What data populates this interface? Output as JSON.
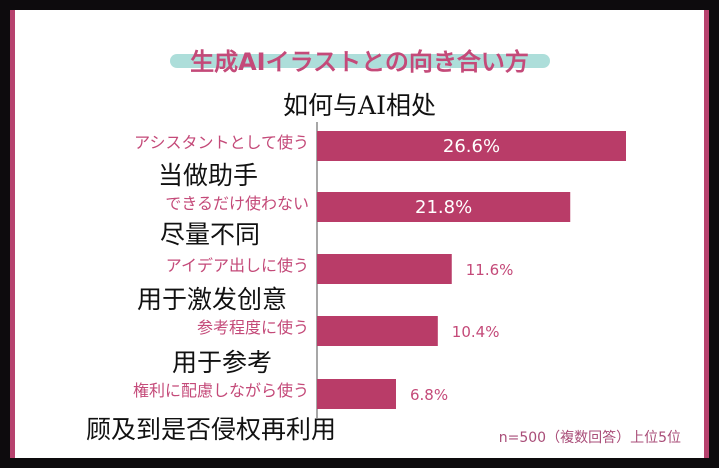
{
  "title": "生成AIイラストとの向き合い方",
  "subtitle": "如何与AI相处",
  "note": "n=500（複数回答）上位5位",
  "colors": {
    "bar": "#b93c68",
    "label": "#c44a79",
    "highlight": "#9fd8d3",
    "border": "#b7426e"
  },
  "chart_data": {
    "type": "bar",
    "orientation": "horizontal",
    "categories": [
      "アシスタントとして使う",
      "できるだけ使わない",
      "アイデア出しに使う",
      "参考程度に使う",
      "権利に配慮しながら使う"
    ],
    "category_translations": [
      "当做助手",
      "尽量不同",
      "用于激发创意",
      "用于参考",
      "顾及到是否侵权再利用"
    ],
    "values": [
      26.6,
      21.8,
      11.6,
      10.4,
      6.8
    ],
    "value_labels": [
      "26.6%",
      "21.8%",
      "11.6%",
      "10.4%",
      "6.8%"
    ],
    "unit": "%",
    "xlim": [
      0,
      28
    ]
  }
}
